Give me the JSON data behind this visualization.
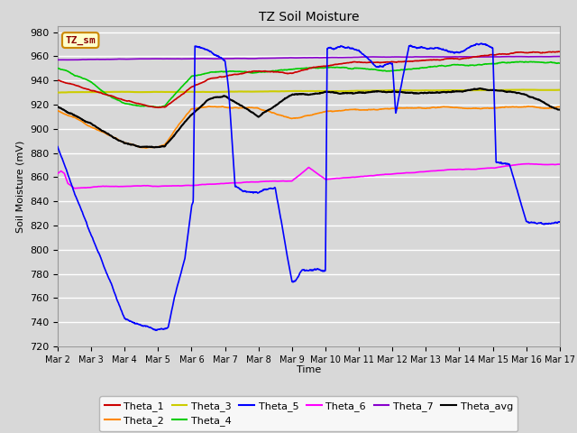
{
  "title": "TZ Soil Moisture",
  "ylabel": "Soil Moisture (mV)",
  "xlabel": "Time",
  "ylim": [
    720,
    985
  ],
  "yticks": [
    720,
    740,
    760,
    780,
    800,
    820,
    840,
    860,
    880,
    900,
    920,
    940,
    960,
    980
  ],
  "xtick_labels": [
    "Mar 2",
    "Mar 3",
    "Mar 4",
    "Mar 5",
    "Mar 6",
    "Mar 7",
    "Mar 8",
    "Mar 9",
    "Mar 10",
    "Mar 11",
    "Mar 12",
    "Mar 13",
    "Mar 14",
    "Mar 15",
    "Mar 16",
    "Mar 17"
  ],
  "series_colors": {
    "Theta_1": "#cc0000",
    "Theta_2": "#ff8800",
    "Theta_3": "#cccc00",
    "Theta_4": "#00cc00",
    "Theta_5": "#0000ff",
    "Theta_6": "#ff00ff",
    "Theta_7": "#8800cc",
    "Theta_avg": "#000000"
  },
  "bg_color": "#d8d8d8",
  "grid_color": "#ffffff",
  "legend_text_color": "#8b0000",
  "legend_bg": "#ffffcc",
  "legend_border": "#cc8800"
}
